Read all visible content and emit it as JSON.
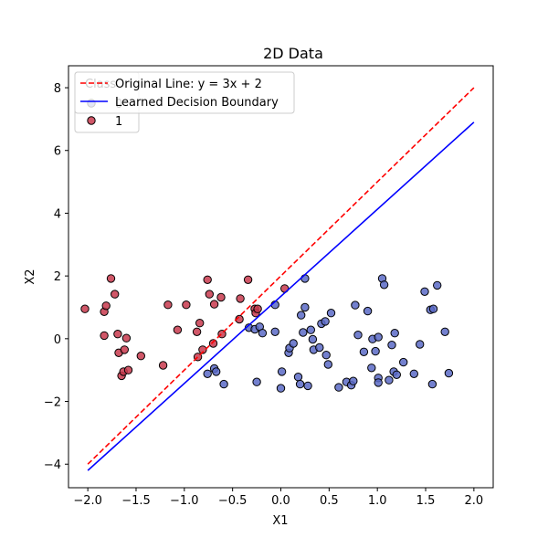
{
  "chart_data": {
    "type": "scatter",
    "title": "2D Data",
    "xlabel": "X1",
    "ylabel": "X2",
    "xlim": [
      -2.2,
      2.2
    ],
    "ylim": [
      -4.75,
      8.7
    ],
    "xticks": [
      -2.0,
      -1.5,
      -1.0,
      -0.5,
      0.0,
      0.5,
      1.0,
      1.5,
      2.0
    ],
    "yticks": [
      -4,
      -2,
      0,
      2,
      4,
      6,
      8
    ],
    "grid": false,
    "legend_placement": "top-left",
    "lines": [
      {
        "name": "Original Line: y = 3x + 2",
        "color": "#ff0000",
        "dashed": true,
        "x": [
          -2.0,
          2.0
        ],
        "y": [
          -4.0,
          8.0
        ]
      },
      {
        "name": "Learned Decision Boundary",
        "color": "#0000ff",
        "dashed": false,
        "x": [
          -2.0,
          2.0
        ],
        "y": [
          -4.2,
          6.9
        ]
      }
    ],
    "series": [
      {
        "name": "0",
        "color": "#5a6ac6",
        "points": [
          [
            -0.33,
            0.35
          ],
          [
            -0.27,
            0.3
          ],
          [
            -0.22,
            0.38
          ],
          [
            -0.19,
            0.18
          ],
          [
            -0.06,
            0.22
          ],
          [
            -0.06,
            1.08
          ],
          [
            -0.76,
            -1.12
          ],
          [
            -0.69,
            -0.95
          ],
          [
            -0.67,
            -1.05
          ],
          [
            -0.59,
            -1.45
          ],
          [
            -0.25,
            -1.38
          ],
          [
            0.01,
            -1.05
          ],
          [
            0.0,
            -1.58
          ],
          [
            0.08,
            -0.45
          ],
          [
            0.09,
            -0.3
          ],
          [
            0.13,
            -0.15
          ],
          [
            0.18,
            -1.22
          ],
          [
            0.2,
            -1.45
          ],
          [
            0.21,
            0.75
          ],
          [
            0.23,
            0.2
          ],
          [
            0.25,
            1.0
          ],
          [
            0.25,
            1.92
          ],
          [
            0.28,
            -1.5
          ],
          [
            0.31,
            0.28
          ],
          [
            0.33,
            -0.02
          ],
          [
            0.34,
            -0.35
          ],
          [
            0.4,
            -0.28
          ],
          [
            0.42,
            0.48
          ],
          [
            0.46,
            0.55
          ],
          [
            0.47,
            -0.52
          ],
          [
            0.49,
            -0.82
          ],
          [
            0.52,
            0.82
          ],
          [
            0.6,
            -1.55
          ],
          [
            0.68,
            -1.38
          ],
          [
            0.73,
            -1.48
          ],
          [
            0.75,
            -1.35
          ],
          [
            0.77,
            1.07
          ],
          [
            0.8,
            0.12
          ],
          [
            0.86,
            -0.42
          ],
          [
            0.9,
            0.88
          ],
          [
            0.94,
            -0.93
          ],
          [
            0.95,
            -0.01
          ],
          [
            0.98,
            -0.4
          ],
          [
            1.01,
            -1.25
          ],
          [
            1.01,
            0.05
          ],
          [
            1.01,
            -1.4
          ],
          [
            1.05,
            1.92
          ],
          [
            1.07,
            1.72
          ],
          [
            1.12,
            -1.32
          ],
          [
            1.15,
            -0.2
          ],
          [
            1.17,
            -1.05
          ],
          [
            1.18,
            0.18
          ],
          [
            1.2,
            -1.15
          ],
          [
            1.27,
            -0.75
          ],
          [
            1.38,
            -1.12
          ],
          [
            1.44,
            -0.18
          ],
          [
            1.49,
            1.5
          ],
          [
            1.55,
            0.92
          ],
          [
            1.57,
            -1.45
          ],
          [
            1.58,
            0.95
          ],
          [
            1.62,
            1.7
          ],
          [
            1.7,
            0.22
          ],
          [
            1.74,
            -1.1
          ]
        ]
      },
      {
        "name": "1",
        "color": "#c8394e",
        "points": [
          [
            -2.03,
            0.95
          ],
          [
            -1.83,
            0.86
          ],
          [
            -1.81,
            1.05
          ],
          [
            -1.83,
            0.1
          ],
          [
            -1.76,
            1.92
          ],
          [
            -1.72,
            1.42
          ],
          [
            -1.69,
            0.15
          ],
          [
            -1.68,
            -0.45
          ],
          [
            -1.65,
            -1.18
          ],
          [
            -1.63,
            -1.05
          ],
          [
            -1.62,
            -0.35
          ],
          [
            -1.6,
            0.02
          ],
          [
            -1.58,
            -1.0
          ],
          [
            -1.45,
            -0.55
          ],
          [
            -1.22,
            -0.85
          ],
          [
            -1.17,
            1.08
          ],
          [
            -1.07,
            0.28
          ],
          [
            -0.98,
            1.08
          ],
          [
            -0.87,
            0.22
          ],
          [
            -0.86,
            -0.58
          ],
          [
            -0.84,
            0.5
          ],
          [
            -0.81,
            -0.35
          ],
          [
            -0.76,
            1.88
          ],
          [
            -0.74,
            1.42
          ],
          [
            -0.7,
            -0.15
          ],
          [
            -0.69,
            1.1
          ],
          [
            -0.62,
            1.32
          ],
          [
            -0.61,
            0.15
          ],
          [
            -0.43,
            0.62
          ],
          [
            -0.42,
            1.28
          ],
          [
            -0.34,
            1.88
          ],
          [
            -0.27,
            0.95
          ],
          [
            -0.26,
            0.82
          ],
          [
            -0.24,
            0.95
          ],
          [
            0.04,
            1.6
          ]
        ]
      }
    ],
    "legend": {
      "entries": [
        {
          "label": "Original Line: y = 3x + 2",
          "kind": "dashed-line",
          "color": "#ff0000"
        },
        {
          "label": "Learned Decision Boundary",
          "kind": "solid-line",
          "color": "#0000ff"
        },
        {
          "label": "Class",
          "kind": "title"
        },
        {
          "label": "0",
          "kind": "marker",
          "color": "#5a6ac6"
        },
        {
          "label": "1",
          "kind": "marker",
          "color": "#c8394e"
        }
      ]
    }
  }
}
